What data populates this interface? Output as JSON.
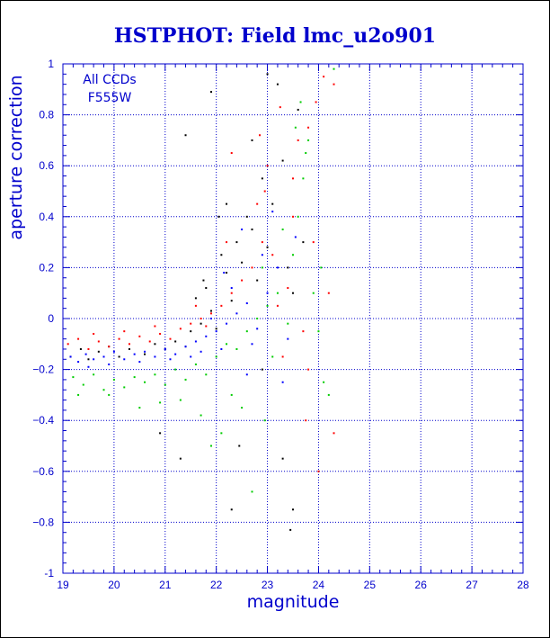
{
  "chart_data": {
    "type": "scatter",
    "title": "HSTPHOT: Field lmc_u2o901",
    "xlabel": "magnitude",
    "ylabel": "aperture correction",
    "xlim": [
      19,
      28
    ],
    "ylim": [
      -1,
      1
    ],
    "x_ticks": [
      19,
      20,
      21,
      22,
      23,
      24,
      25,
      26,
      27,
      28
    ],
    "y_ticks": [
      -1,
      -0.8,
      -0.6,
      -0.4,
      -0.2,
      0,
      0.2,
      0.4,
      0.6,
      0.8,
      1
    ],
    "x_tick_labels": [
      "19",
      "20",
      "21",
      "22",
      "23",
      "24",
      "25",
      "26",
      "27",
      "28"
    ],
    "y_tick_labels": [
      "-1",
      "−0.8",
      "−0.6",
      "−0.4",
      "−0.2",
      "0",
      "0.2",
      "0.4",
      "0.6",
      "0.8",
      "1"
    ],
    "grid": true,
    "annotations": [
      "All CCDs",
      "F555W"
    ],
    "series": [
      {
        "color": "#000000",
        "points": [
          [
            19.15,
            -0.15
          ],
          [
            19.35,
            -0.12
          ],
          [
            19.5,
            -0.16
          ],
          [
            19.7,
            -0.13
          ],
          [
            19.9,
            -0.11
          ],
          [
            20.1,
            -0.15
          ],
          [
            20.3,
            -0.12
          ],
          [
            20.6,
            -0.14
          ],
          [
            20.8,
            -0.1
          ],
          [
            21.0,
            -0.12
          ],
          [
            21.2,
            -0.09
          ],
          [
            21.4,
            -0.11
          ],
          [
            21.5,
            -0.05
          ],
          [
            21.6,
            0.08
          ],
          [
            21.7,
            -0.02
          ],
          [
            21.8,
            0.12
          ],
          [
            21.9,
            0.03
          ],
          [
            22.0,
            -0.04
          ],
          [
            22.1,
            0.25
          ],
          [
            22.2,
            0.18
          ],
          [
            22.3,
            0.07
          ],
          [
            22.4,
            0.3
          ],
          [
            22.5,
            0.22
          ],
          [
            22.6,
            0.4
          ],
          [
            22.7,
            0.35
          ],
          [
            22.8,
            0.15
          ],
          [
            22.9,
            0.55
          ],
          [
            23.0,
            0.28
          ],
          [
            23.1,
            0.45
          ],
          [
            23.2,
            0.92
          ],
          [
            23.3,
            0.62
          ],
          [
            23.4,
            0.2
          ],
          [
            23.5,
            0.1
          ],
          [
            23.6,
            0.82
          ],
          [
            23.7,
            0.3
          ],
          [
            22.2,
            0.45
          ],
          [
            21.4,
            0.72
          ],
          [
            21.9,
            0.89
          ],
          [
            22.45,
            -0.5
          ],
          [
            22.3,
            -0.75
          ],
          [
            23.5,
            -0.75
          ],
          [
            23.45,
            -0.83
          ],
          [
            23.3,
            -0.55
          ],
          [
            22.9,
            -0.2
          ],
          [
            23.0,
            0.96
          ],
          [
            22.7,
            0.7
          ],
          [
            21.3,
            -0.55
          ],
          [
            20.9,
            -0.45
          ],
          [
            22.05,
            0.4
          ],
          [
            21.75,
            0.15
          ]
        ]
      },
      {
        "color": "#ff0000",
        "points": [
          [
            19.1,
            -0.1
          ],
          [
            19.3,
            -0.08
          ],
          [
            19.5,
            -0.12
          ],
          [
            19.7,
            -0.09
          ],
          [
            19.9,
            -0.11
          ],
          [
            20.1,
            -0.08
          ],
          [
            20.3,
            -0.1
          ],
          [
            20.5,
            -0.07
          ],
          [
            20.7,
            -0.09
          ],
          [
            20.9,
            -0.06
          ],
          [
            21.1,
            -0.08
          ],
          [
            21.3,
            -0.04
          ],
          [
            21.5,
            -0.02
          ],
          [
            21.7,
            0.0
          ],
          [
            21.9,
            0.02
          ],
          [
            22.1,
            0.05
          ],
          [
            22.3,
            0.1
          ],
          [
            22.5,
            0.15
          ],
          [
            22.7,
            0.2
          ],
          [
            22.8,
            0.45
          ],
          [
            22.9,
            0.3
          ],
          [
            23.0,
            0.6
          ],
          [
            23.1,
            0.25
          ],
          [
            23.2,
            0.05
          ],
          [
            23.3,
            -0.15
          ],
          [
            23.4,
            0.12
          ],
          [
            23.5,
            0.4
          ],
          [
            23.6,
            0.7
          ],
          [
            23.7,
            -0.05
          ],
          [
            23.8,
            -0.2
          ],
          [
            23.9,
            0.3
          ],
          [
            23.95,
            0.85
          ],
          [
            24.0,
            -0.6
          ],
          [
            24.1,
            0.95
          ],
          [
            24.3,
            0.92
          ],
          [
            22.3,
            0.65
          ],
          [
            22.85,
            0.72
          ],
          [
            23.25,
            0.83
          ],
          [
            24.2,
            0.1
          ],
          [
            22.2,
            0.3
          ],
          [
            21.6,
            0.05
          ],
          [
            23.75,
            -0.4
          ],
          [
            24.3,
            -0.45
          ],
          [
            23.5,
            0.55
          ],
          [
            22.95,
            0.5
          ],
          [
            23.8,
            0.75
          ],
          [
            21.8,
            -0.03
          ],
          [
            19.6,
            -0.06
          ],
          [
            20.2,
            -0.05
          ],
          [
            20.8,
            -0.03
          ]
        ]
      },
      {
        "color": "#0000ff",
        "points": [
          [
            19.15,
            -0.15
          ],
          [
            19.3,
            -0.17
          ],
          [
            19.45,
            -0.14
          ],
          [
            19.6,
            -0.16
          ],
          [
            19.8,
            -0.15
          ],
          [
            20.0,
            -0.13
          ],
          [
            20.2,
            -0.16
          ],
          [
            20.4,
            -0.14
          ],
          [
            20.6,
            -0.13
          ],
          [
            20.8,
            -0.15
          ],
          [
            21.0,
            -0.12
          ],
          [
            21.2,
            -0.14
          ],
          [
            21.4,
            -0.11
          ],
          [
            21.6,
            -0.09
          ],
          [
            21.8,
            -0.07
          ],
          [
            22.0,
            -0.05
          ],
          [
            22.2,
            -0.02
          ],
          [
            22.4,
            0.02
          ],
          [
            22.6,
            0.06
          ],
          [
            22.8,
            -0.04
          ],
          [
            23.0,
            0.1
          ],
          [
            23.2,
            0.2
          ],
          [
            23.4,
            -0.08
          ],
          [
            22.5,
            0.35
          ],
          [
            22.9,
            0.25
          ],
          [
            21.9,
            0.0
          ],
          [
            22.3,
            0.12
          ],
          [
            22.7,
            -0.1
          ],
          [
            23.1,
            0.42
          ],
          [
            22.1,
            -0.12
          ],
          [
            19.9,
            -0.18
          ],
          [
            20.5,
            -0.17
          ],
          [
            21.1,
            -0.16
          ],
          [
            21.5,
            -0.15
          ],
          [
            22.6,
            -0.22
          ],
          [
            23.3,
            -0.25
          ],
          [
            22.15,
            0.18
          ],
          [
            23.55,
            0.32
          ],
          [
            21.7,
            -0.13
          ],
          [
            19.5,
            -0.19
          ]
        ]
      },
      {
        "color": "#00cc00",
        "points": [
          [
            19.2,
            -0.23
          ],
          [
            19.4,
            -0.26
          ],
          [
            19.6,
            -0.22
          ],
          [
            19.8,
            -0.28
          ],
          [
            20.0,
            -0.24
          ],
          [
            20.2,
            -0.27
          ],
          [
            20.4,
            -0.23
          ],
          [
            20.6,
            -0.25
          ],
          [
            20.8,
            -0.22
          ],
          [
            21.0,
            -0.26
          ],
          [
            21.2,
            -0.2
          ],
          [
            21.4,
            -0.24
          ],
          [
            21.6,
            -0.18
          ],
          [
            21.8,
            -0.22
          ],
          [
            22.0,
            -0.15
          ],
          [
            22.2,
            -0.1
          ],
          [
            22.4,
            -0.12
          ],
          [
            22.6,
            -0.05
          ],
          [
            22.8,
            0.0
          ],
          [
            23.0,
            0.05
          ],
          [
            23.2,
            0.1
          ],
          [
            23.4,
            -0.02
          ],
          [
            23.5,
            0.25
          ],
          [
            23.6,
            0.4
          ],
          [
            23.7,
            0.55
          ],
          [
            23.8,
            0.7
          ],
          [
            23.75,
            0.65
          ],
          [
            23.9,
            0.1
          ],
          [
            24.0,
            -0.05
          ],
          [
            24.1,
            -0.25
          ],
          [
            24.2,
            -0.3
          ],
          [
            24.3,
            0.98
          ],
          [
            23.55,
            0.75
          ],
          [
            22.9,
            0.2
          ],
          [
            22.7,
            -0.68
          ],
          [
            22.5,
            -0.35
          ],
          [
            21.9,
            -0.5
          ],
          [
            22.1,
            -0.45
          ],
          [
            23.3,
            0.35
          ],
          [
            23.1,
            -0.15
          ],
          [
            20.5,
            -0.35
          ],
          [
            19.9,
            -0.3
          ],
          [
            21.3,
            -0.32
          ],
          [
            22.3,
            -0.3
          ],
          [
            23.65,
            0.85
          ],
          [
            24.05,
            0.2
          ],
          [
            21.7,
            -0.38
          ],
          [
            20.9,
            -0.33
          ],
          [
            19.3,
            -0.3
          ],
          [
            22.95,
            -0.4
          ]
        ]
      }
    ]
  }
}
